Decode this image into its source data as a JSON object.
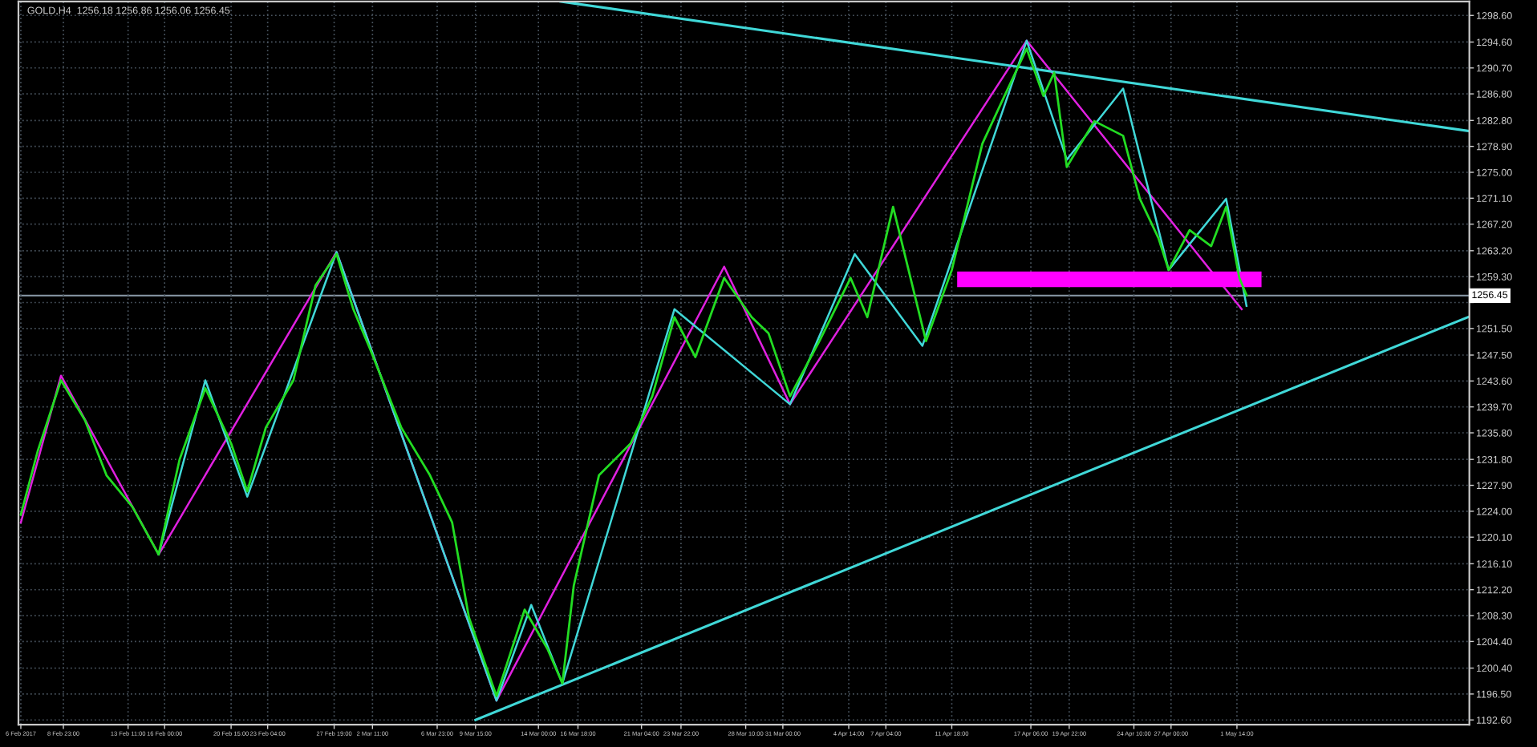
{
  "chart_data": {
    "type": "line",
    "title": "GOLD,H4  1256.18 1256.86 1256.06 1256.45",
    "xlim": [
      "2017-02-05T20:00",
      "2017-05-17T18:00"
    ],
    "ylim": [
      1191.9,
      1300.7
    ],
    "xticks": [
      {
        "value": "2017-02-06T00:00",
        "label": "6 Feb 2017"
      },
      {
        "value": "2017-02-08T23:00",
        "label": "8 Feb 23:00"
      },
      {
        "value": "2017-02-13T11:00",
        "label": "13 Feb 11:00"
      },
      {
        "value": "2017-02-16T00:00",
        "label": "16 Feb 00:00"
      },
      {
        "value": "2017-02-20T15:00",
        "label": "20 Feb 15:00"
      },
      {
        "value": "2017-02-23T04:00",
        "label": "23 Feb 04:00"
      },
      {
        "value": "2017-02-27T19:00",
        "label": "27 Feb 19:00"
      },
      {
        "value": "2017-03-02T11:00",
        "label": "2 Mar 11:00"
      },
      {
        "value": "2017-03-06T23:00",
        "label": "6 Mar 23:00"
      },
      {
        "value": "2017-03-09T15:00",
        "label": "9 Mar 15:00"
      },
      {
        "value": "2017-03-14T00:00",
        "label": "14 Mar 00:00"
      },
      {
        "value": "2017-03-16T18:00",
        "label": "16 Mar 18:00"
      },
      {
        "value": "2017-03-21T04:00",
        "label": "21 Mar 04:00"
      },
      {
        "value": "2017-03-23T22:00",
        "label": "23 Mar 22:00"
      },
      {
        "value": "2017-03-28T10:00",
        "label": "28 Mar 10:00"
      },
      {
        "value": "2017-03-31T00:00",
        "label": "31 Mar 00:00"
      },
      {
        "value": "2017-04-04T14:00",
        "label": "4 Apr 14:00"
      },
      {
        "value": "2017-04-07T04:00",
        "label": "7 Apr 04:00"
      },
      {
        "value": "2017-04-11T18:00",
        "label": "11 Apr 18:00"
      },
      {
        "value": "2017-04-17T06:00",
        "label": "17 Apr 06:00"
      },
      {
        "value": "2017-04-19T22:00",
        "label": "19 Apr 22:00"
      },
      {
        "value": "2017-04-24T10:00",
        "label": "24 Apr 10:00"
      },
      {
        "value": "2017-04-27T00:00",
        "label": "27 Apr 00:00"
      },
      {
        "value": "2017-05-01T14:00",
        "label": "1 May 14:00"
      }
    ],
    "yticks": [
      {
        "value": 1298.6,
        "label": "1298.60"
      },
      {
        "value": 1294.6,
        "label": "1294.60"
      },
      {
        "value": 1290.7,
        "label": "1290.70"
      },
      {
        "value": 1286.8,
        "label": "1286.80"
      },
      {
        "value": 1282.8,
        "label": "1282.80"
      },
      {
        "value": 1278.9,
        "label": "1278.90"
      },
      {
        "value": 1275.0,
        "label": "1275.00"
      },
      {
        "value": 1271.1,
        "label": "1271.10"
      },
      {
        "value": 1267.2,
        "label": "1267.20"
      },
      {
        "value": 1263.2,
        "label": "1263.20"
      },
      {
        "value": 1259.3,
        "label": "1259.30"
      },
      {
        "value": 1255.4,
        "label": null
      },
      {
        "value": 1251.5,
        "label": "1251.50"
      },
      {
        "value": 1247.5,
        "label": "1247.50"
      },
      {
        "value": 1243.6,
        "label": "1243.60"
      },
      {
        "value": 1239.7,
        "label": "1239.70"
      },
      {
        "value": 1235.8,
        "label": "1235.80"
      },
      {
        "value": 1231.8,
        "label": "1231.80"
      },
      {
        "value": 1227.9,
        "label": "1227.90"
      },
      {
        "value": 1224.0,
        "label": "1224.00"
      },
      {
        "value": 1220.1,
        "label": "1220.10"
      },
      {
        "value": 1216.1,
        "label": "1216.10"
      },
      {
        "value": 1212.2,
        "label": "1212.20"
      },
      {
        "value": 1208.3,
        "label": "1208.30"
      },
      {
        "value": 1204.4,
        "label": "1204.40"
      },
      {
        "value": 1200.4,
        "label": "1200.40"
      },
      {
        "value": 1196.5,
        "label": "1196.50"
      },
      {
        "value": 1192.6,
        "label": "1192.60"
      }
    ],
    "grid": true,
    "line_style": "solid",
    "ref_lines": [
      {
        "axis": "y",
        "value": 1256.45,
        "label": "1256.45",
        "color": "#8a9aa8"
      }
    ],
    "series": [
      {
        "color": "#22dd22",
        "x": [
          "2017-02-06T00:00",
          "2017-02-07T04:00",
          "2017-02-08T19:00",
          "2017-02-10T11:00",
          "2017-02-11T23:00",
          "2017-02-13T18:00",
          "2017-02-15T14:00",
          "2017-02-17T01:00",
          "2017-02-18T20:00",
          "2017-02-20T15:00",
          "2017-02-21T18:00",
          "2017-02-23T01:00",
          "2017-02-24T23:00",
          "2017-02-26T12:00",
          "2017-02-27T23:00",
          "2017-03-01T03:00",
          "2017-03-02T07:00",
          "2017-03-04T11:00",
          "2017-03-06T11:00",
          "2017-03-08T00:00",
          "2017-03-09T04:00",
          "2017-03-11T02:00",
          "2017-03-13T01:00",
          "2017-03-14T15:00",
          "2017-03-15T16:00",
          "2017-03-16T11:00",
          "2017-03-18T05:00",
          "2017-03-20T10:00",
          "2017-03-21T22:00",
          "2017-03-23T11:00",
          "2017-03-24T22:00",
          "2017-03-26T22:00",
          "2017-03-28T20:00",
          "2017-03-30T00:00",
          "2017-03-31T12:00",
          "2017-04-02T13:00",
          "2017-04-04T17:00",
          "2017-04-05T21:00",
          "2017-04-07T16:00",
          "2017-04-09T23:00",
          "2017-04-11T18:00",
          "2017-04-13T21:00",
          "2017-04-15T10:00",
          "2017-04-16T23:00",
          "2017-04-18T03:00",
          "2017-04-18T21:00",
          "2017-04-19T18:00",
          "2017-04-21T16:00",
          "2017-04-23T16:00",
          "2017-04-24T20:00",
          "2017-04-26T03:00",
          "2017-04-26T20:00",
          "2017-04-28T07:00",
          "2017-04-29T19:00",
          "2017-04-30T20:00",
          "2017-05-01T18:00",
          "2017-05-02T06:00"
        ],
        "values": [
          1223.5,
          1233.0,
          1243.7,
          1237.7,
          1229.4,
          1224.7,
          1217.5,
          1231.8,
          1242.5,
          1234.2,
          1227.0,
          1236.6,
          1243.7,
          1258.0,
          1262.7,
          1254.4,
          1248.4,
          1236.6,
          1229.4,
          1222.3,
          1208.0,
          1196.2,
          1209.2,
          1203.3,
          1198.1,
          1212.8,
          1229.4,
          1234.2,
          1241.3,
          1253.2,
          1247.2,
          1259.1,
          1253.2,
          1250.8,
          1241.3,
          1249.6,
          1259.1,
          1253.2,
          1269.8,
          1249.6,
          1260.3,
          1279.3,
          1286.5,
          1293.6,
          1286.5,
          1290.0,
          1275.8,
          1282.7,
          1280.5,
          1271.0,
          1265.1,
          1260.3,
          1266.3,
          1263.9,
          1269.8,
          1259.1,
          1256.5
        ]
      },
      {
        "color": "#e020e0",
        "x": [
          "2017-02-06T00:00",
          "2017-02-08T19:00",
          "2017-02-15T14:00",
          "2017-02-27T23:00",
          "2017-03-11T02:00",
          "2017-03-26T22:00",
          "2017-03-31T12:00",
          "2017-04-16T23:00",
          "2017-05-01T22:00"
        ],
        "values": [
          1222.3,
          1244.4,
          1217.5,
          1263.0,
          1195.5,
          1260.8,
          1240.1,
          1294.8,
          1254.4
        ]
      },
      {
        "color": "#40d8d8",
        "x": [
          "2017-02-15T14:00",
          "2017-02-18T20:00",
          "2017-02-21T18:00",
          "2017-02-27T23:00",
          "2017-03-11T02:00",
          "2017-03-13T12:00",
          "2017-03-15T16:00",
          "2017-03-23T11:00",
          "2017-03-31T12:00",
          "2017-04-05T00:00",
          "2017-04-09T17:00",
          "2017-04-16T23:00",
          "2017-04-19T18:00",
          "2017-04-23T16:00",
          "2017-04-26T20:00",
          "2017-04-30T20:00",
          "2017-05-02T06:00"
        ],
        "values": [
          1217.5,
          1243.7,
          1226.2,
          1263.0,
          1195.5,
          1209.9,
          1198.1,
          1254.4,
          1240.1,
          1262.7,
          1248.9,
          1294.8,
          1276.9,
          1287.6,
          1260.3,
          1271.0,
          1254.9
        ]
      },
      {
        "color": "#40d8d8",
        "x": [
          "2017-03-15T13:00",
          "2017-05-17T18:00"
        ],
        "values": [
          1300.7,
          1281.2
        ]
      },
      {
        "color": "#40d8d8",
        "x": [
          "2017-03-09T15:00",
          "2017-05-17T18:00"
        ],
        "values": [
          1192.6,
          1253.3
        ]
      },
      {
        "color": "#ff00ff",
        "x": [
          "2017-04-12T16:00",
          "2017-05-02T18:00"
        ],
        "values": [
          1258.9,
          1258.9
        ]
      }
    ]
  }
}
